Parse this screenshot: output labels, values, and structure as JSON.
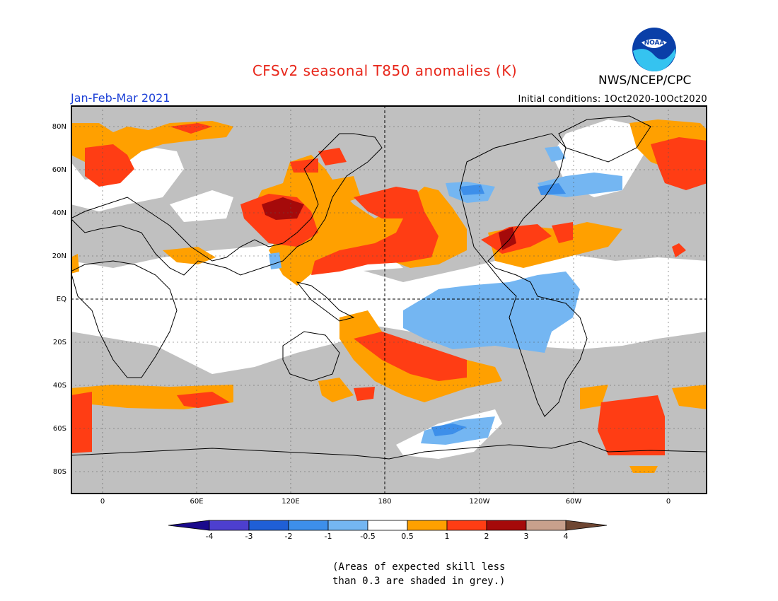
{
  "header": {
    "title": "CFSv2 seasonal T850 anomalies (K)",
    "agency": "NWS/NCEP/CPC",
    "logo_text": "NOAA",
    "season": "Jan-Feb-Mar 2021",
    "initial_conditions": "Initial conditions: 1Oct2020-10Oct2020"
  },
  "map": {
    "lat_labels": [
      "80N",
      "60N",
      "40N",
      "20N",
      "EQ",
      "20S",
      "40S",
      "60S",
      "80S"
    ],
    "lon_labels": [
      "0",
      "60E",
      "120E",
      "180",
      "120W",
      "60W",
      "0"
    ]
  },
  "colorbar": {
    "labels": [
      "-4",
      "-3",
      "-2",
      "-1",
      "-0.5",
      "0.5",
      "1",
      "2",
      "3",
      "4"
    ],
    "colors": [
      "#1a0a8c",
      "#4d3fcf",
      "#1f5fd6",
      "#3d8fea",
      "#74b6f2",
      "#ffffff",
      "#ffa000",
      "#ff3d14",
      "#a50a0a",
      "#c8a08c",
      "#6e4632"
    ]
  },
  "note": {
    "line1": "(Areas of expected skill less",
    "line2": "than 0.3 are shaded in grey.)"
  }
}
